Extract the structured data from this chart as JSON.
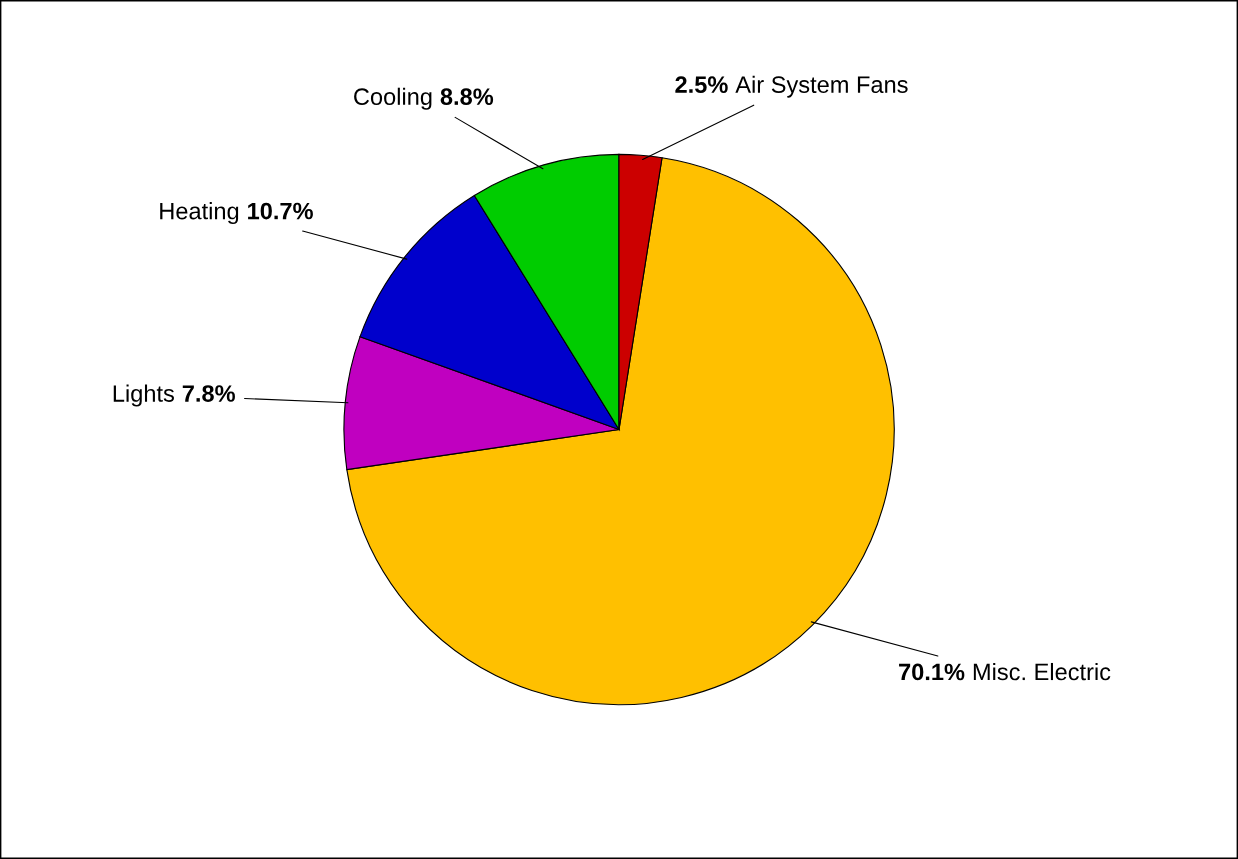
{
  "chart_data": {
    "type": "pie",
    "categories": [
      "Misc. Electric",
      "Lights",
      "Heating",
      "Cooling",
      "Air System Fans"
    ],
    "values": [
      70.1,
      7.8,
      10.7,
      8.8,
      2.5
    ],
    "colors": [
      "#ffc000",
      "#c000c0",
      "#0000cc",
      "#00cc00",
      "#cc0000"
    ],
    "value_labels": [
      "70.1%",
      "7.8%",
      "10.7%",
      "8.8%",
      "2.5%"
    ],
    "legend": false
  }
}
